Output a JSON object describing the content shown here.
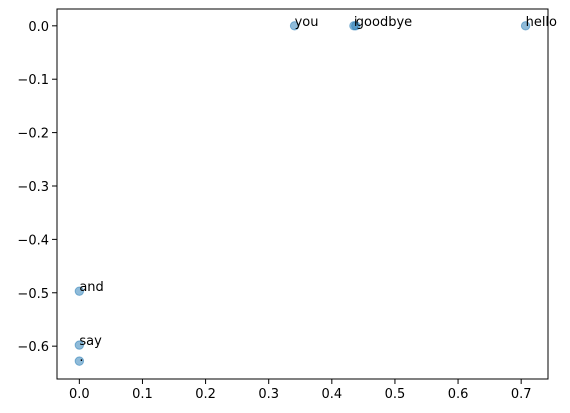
{
  "chart_data": {
    "type": "scatter",
    "labels": [
      "you",
      "say",
      "goodbye",
      "and",
      "i",
      "hello",
      "."
    ],
    "x": [
      0.341,
      0,
      0.438,
      0,
      0.435,
      0.707,
      0
    ],
    "values": [
      0,
      -0.598,
      0,
      -0.497,
      0,
      0,
      -0.628
    ],
    "color": "#1f77b4",
    "xlim": [
      -0.0354,
      0.7425
    ],
    "ylim": [
      -0.6615,
      0.0315
    ],
    "xticks": [
      {
        "value": 0,
        "label": "0.0"
      },
      {
        "value": 0.1,
        "label": "0.1"
      },
      {
        "value": 0.2,
        "label": "0.2"
      },
      {
        "value": 0.3,
        "label": "0.3"
      },
      {
        "value": 0.4,
        "label": "0.4"
      },
      {
        "value": 0.5,
        "label": "0.5"
      },
      {
        "value": 0.6,
        "label": "0.6"
      },
      {
        "value": 0.7,
        "label": "0.7"
      }
    ],
    "yticks": [
      {
        "value": 0,
        "label": "0.0"
      },
      {
        "value": -0.1,
        "label": "−0.1"
      },
      {
        "value": -0.2,
        "label": "−0.2"
      },
      {
        "value": -0.3,
        "label": "−0.3"
      },
      {
        "value": -0.4,
        "label": "−0.4"
      },
      {
        "value": -0.5,
        "label": "−0.5"
      },
      {
        "value": -0.6,
        "label": "−0.6"
      }
    ]
  }
}
